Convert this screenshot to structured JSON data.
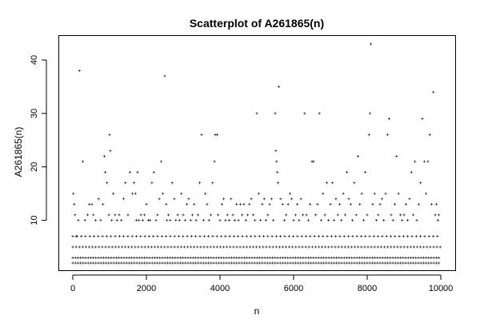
{
  "chart_data": {
    "type": "scatter",
    "title": "Scatterplot of A261865(n)",
    "xlabel": "n",
    "ylabel": "A261865(n)",
    "xlim": [
      0,
      10000
    ],
    "ylim": [
      2,
      43
    ],
    "x_ticks": [
      0,
      2000,
      4000,
      6000,
      8000,
      10000
    ],
    "y_ticks": [
      10,
      20,
      30,
      40
    ],
    "x_tick_labels": [
      "0",
      "2000",
      "4000",
      "6000",
      "8000",
      "10000"
    ],
    "y_tick_labels": [
      "10",
      "20",
      "30",
      "40"
    ],
    "grid": false,
    "legend": "none",
    "point_marker": "+",
    "point_color": "#000000",
    "dense_bands": [
      2,
      3,
      5,
      7
    ],
    "series": [
      {
        "points": [
          [
            15,
            15
          ],
          [
            40,
            13
          ],
          [
            60,
            11
          ],
          [
            90,
            7
          ],
          [
            150,
            10
          ],
          [
            180,
            38
          ],
          [
            270,
            21
          ],
          [
            330,
            10
          ],
          [
            400,
            11
          ],
          [
            450,
            13
          ],
          [
            520,
            13
          ],
          [
            560,
            11
          ],
          [
            620,
            10
          ],
          [
            700,
            14
          ],
          [
            760,
            10
          ],
          [
            820,
            13
          ],
          [
            860,
            22
          ],
          [
            880,
            19
          ],
          [
            930,
            17
          ],
          [
            980,
            11
          ],
          [
            1000,
            26
          ],
          [
            1020,
            23
          ],
          [
            1060,
            10
          ],
          [
            1100,
            15
          ],
          [
            1150,
            11
          ],
          [
            1200,
            10
          ],
          [
            1260,
            11
          ],
          [
            1320,
            10
          ],
          [
            1380,
            14
          ],
          [
            1430,
            17
          ],
          [
            1500,
            11
          ],
          [
            1550,
            19
          ],
          [
            1620,
            15
          ],
          [
            1660,
            17
          ],
          [
            1700,
            15
          ],
          [
            1730,
            10
          ],
          [
            1760,
            19
          ],
          [
            1800,
            10
          ],
          [
            1850,
            11
          ],
          [
            1900,
            10
          ],
          [
            1950,
            11
          ],
          [
            2000,
            13
          ],
          [
            2050,
            10
          ],
          [
            2100,
            10
          ],
          [
            2150,
            17
          ],
          [
            2200,
            19
          ],
          [
            2260,
            10
          ],
          [
            2300,
            11
          ],
          [
            2350,
            14
          ],
          [
            2400,
            21
          ],
          [
            2450,
            15
          ],
          [
            2500,
            37
          ],
          [
            2540,
            13
          ],
          [
            2560,
            10
          ],
          [
            2600,
            11
          ],
          [
            2650,
            10
          ],
          [
            2700,
            17
          ],
          [
            2760,
            14
          ],
          [
            2800,
            10
          ],
          [
            2850,
            11
          ],
          [
            2900,
            10
          ],
          [
            2950,
            15
          ],
          [
            3000,
            11
          ],
          [
            3050,
            10
          ],
          [
            3100,
            13
          ],
          [
            3150,
            14
          ],
          [
            3200,
            10
          ],
          [
            3250,
            11
          ],
          [
            3300,
            13
          ],
          [
            3350,
            10
          ],
          [
            3400,
            11
          ],
          [
            3450,
            17
          ],
          [
            3500,
            26
          ],
          [
            3550,
            10
          ],
          [
            3600,
            15
          ],
          [
            3650,
            13
          ],
          [
            3700,
            10
          ],
          [
            3750,
            11
          ],
          [
            3800,
            17
          ],
          [
            3850,
            21
          ],
          [
            3870,
            26
          ],
          [
            3920,
            26
          ],
          [
            3950,
            11
          ],
          [
            4000,
            10
          ],
          [
            4050,
            13
          ],
          [
            4100,
            14
          ],
          [
            4150,
            10
          ],
          [
            4200,
            11
          ],
          [
            4250,
            10
          ],
          [
            4300,
            14
          ],
          [
            4350,
            11
          ],
          [
            4400,
            10
          ],
          [
            4450,
            13
          ],
          [
            4500,
            10
          ],
          [
            4550,
            13
          ],
          [
            4600,
            11
          ],
          [
            4650,
            13
          ],
          [
            4700,
            10
          ],
          [
            4750,
            11
          ],
          [
            4800,
            13
          ],
          [
            4850,
            14
          ],
          [
            4900,
            11
          ],
          [
            4950,
            10
          ],
          [
            5000,
            30
          ],
          [
            5050,
            15
          ],
          [
            5100,
            10
          ],
          [
            5150,
            13
          ],
          [
            5200,
            14
          ],
          [
            5250,
            10
          ],
          [
            5300,
            11
          ],
          [
            5350,
            13
          ],
          [
            5400,
            14
          ],
          [
            5450,
            10
          ],
          [
            5500,
            30
          ],
          [
            5520,
            23
          ],
          [
            5540,
            21
          ],
          [
            5560,
            19
          ],
          [
            5580,
            17
          ],
          [
            5600,
            35
          ],
          [
            5650,
            14
          ],
          [
            5700,
            13
          ],
          [
            5750,
            10
          ],
          [
            5800,
            11
          ],
          [
            5850,
            13
          ],
          [
            5900,
            15
          ],
          [
            5950,
            14
          ],
          [
            6000,
            10
          ],
          [
            6050,
            11
          ],
          [
            6100,
            13
          ],
          [
            6150,
            10
          ],
          [
            6200,
            14
          ],
          [
            6250,
            11
          ],
          [
            6300,
            30
          ],
          [
            6350,
            11
          ],
          [
            6400,
            10
          ],
          [
            6450,
            13
          ],
          [
            6500,
            21
          ],
          [
            6540,
            21
          ],
          [
            6600,
            11
          ],
          [
            6650,
            13
          ],
          [
            6700,
            30
          ],
          [
            6750,
            10
          ],
          [
            6800,
            15
          ],
          [
            6850,
            11
          ],
          [
            6900,
            17
          ],
          [
            6950,
            10
          ],
          [
            7000,
            13
          ],
          [
            7050,
            17
          ],
          [
            7100,
            10
          ],
          [
            7150,
            14
          ],
          [
            7200,
            11
          ],
          [
            7250,
            13
          ],
          [
            7300,
            10
          ],
          [
            7350,
            15
          ],
          [
            7400,
            11
          ],
          [
            7450,
            19
          ],
          [
            7500,
            14
          ],
          [
            7550,
            13
          ],
          [
            7600,
            10
          ],
          [
            7650,
            17
          ],
          [
            7700,
            11
          ],
          [
            7750,
            22
          ],
          [
            7800,
            13
          ],
          [
            7850,
            15
          ],
          [
            7900,
            10
          ],
          [
            7950,
            19
          ],
          [
            8000,
            11
          ],
          [
            8050,
            26
          ],
          [
            8080,
            30
          ],
          [
            8100,
            43
          ],
          [
            8150,
            13
          ],
          [
            8200,
            15
          ],
          [
            8250,
            10
          ],
          [
            8300,
            11
          ],
          [
            8350,
            13
          ],
          [
            8400,
            14
          ],
          [
            8450,
            10
          ],
          [
            8500,
            15
          ],
          [
            8550,
            26
          ],
          [
            8600,
            29
          ],
          [
            8650,
            11
          ],
          [
            8700,
            10
          ],
          [
            8750,
            13
          ],
          [
            8800,
            22
          ],
          [
            8850,
            15
          ],
          [
            8900,
            11
          ],
          [
            8950,
            10
          ],
          [
            9000,
            11
          ],
          [
            9050,
            13
          ],
          [
            9100,
            10
          ],
          [
            9150,
            14
          ],
          [
            9200,
            19
          ],
          [
            9250,
            11
          ],
          [
            9300,
            21
          ],
          [
            9350,
            10
          ],
          [
            9400,
            13
          ],
          [
            9450,
            17
          ],
          [
            9500,
            29
          ],
          [
            9550,
            21
          ],
          [
            9600,
            15
          ],
          [
            9650,
            21
          ],
          [
            9700,
            26
          ],
          [
            9750,
            13
          ],
          [
            9800,
            34
          ],
          [
            9850,
            11
          ],
          [
            9880,
            13
          ],
          [
            9920,
            10
          ],
          [
            9950,
            11
          ]
        ]
      }
    ]
  }
}
